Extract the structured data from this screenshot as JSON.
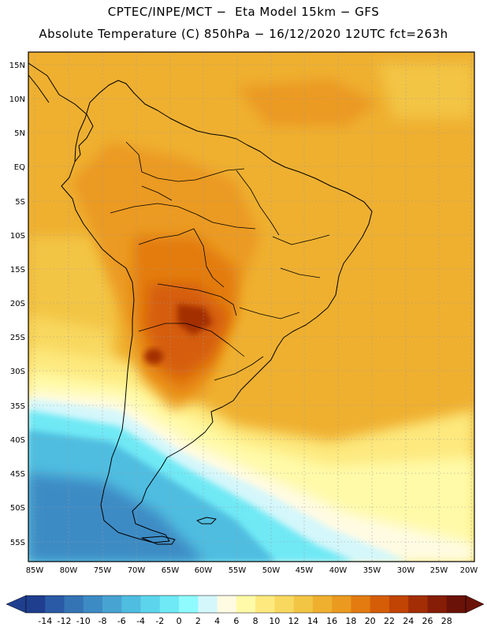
{
  "header": {
    "line1": "CPTEC/INPE/MCT −  Eta Model 15km − GFS",
    "line2": "Absolute Temperature (C) 850hPa − 16/12/2020 12UTC fct=263h"
  },
  "axes": {
    "latitude_labels": [
      "15N",
      "10N",
      "5N",
      "EQ",
      "5S",
      "10S",
      "15S",
      "20S",
      "25S",
      "30S",
      "35S",
      "40S",
      "45S",
      "50S",
      "55S"
    ],
    "longitude_labels": [
      "85W",
      "80W",
      "75W",
      "70W",
      "65W",
      "60W",
      "55W",
      "50W",
      "45W",
      "40W",
      "35W",
      "30W",
      "25W",
      "20W"
    ]
  },
  "colorbar": {
    "ticks": [
      "-14",
      "-12",
      "-10",
      "-8",
      "-6",
      "-4",
      "-2",
      "0",
      "2",
      "4",
      "6",
      "8",
      "10",
      "12",
      "14",
      "16",
      "18",
      "20",
      "22",
      "24",
      "26",
      "28"
    ],
    "colors": [
      "#1f3f8e",
      "#2a5aa5",
      "#3474b5",
      "#3d8bc4",
      "#47a3d2",
      "#4fbde0",
      "#5cd5ec",
      "#6fe9f5",
      "#8ffbff",
      "#d4f7fb",
      "#fffbe3",
      "#fffaa8",
      "#fde97e",
      "#f8d85f",
      "#f3c545",
      "#efb030",
      "#eb9a20",
      "#e37b10",
      "#d55d08",
      "#c14404",
      "#a32e05",
      "#861d07",
      "#6b1208"
    ],
    "units": "C"
  },
  "field": {
    "variable": "Absolute Temperature",
    "level": "850hPa",
    "palette_warm": "#efb030",
    "palette_hot": "#d55d08",
    "palette_cold": "#47a3d2"
  }
}
